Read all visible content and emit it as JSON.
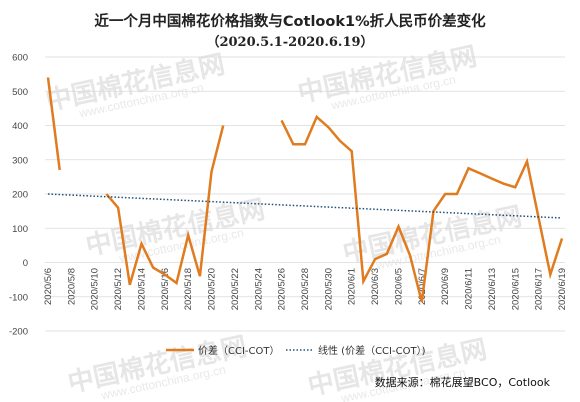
{
  "chart_data": {
    "type": "line",
    "title": "近一个月中国棉花价格指数与Cotlook1%折人民币价差变化",
    "subtitle": "（2020.5.1-2020.6.19）",
    "ylim": [
      -200,
      600
    ],
    "yticks": [
      600,
      500,
      400,
      300,
      200,
      100,
      0,
      -100,
      -200
    ],
    "grid": "horizontal",
    "x": [
      "2020/5/6",
      "2020/5/7",
      "2020/5/8",
      "2020/5/9",
      "2020/5/10",
      "2020/5/11",
      "2020/5/12",
      "2020/5/13",
      "2020/5/14",
      "2020/5/15",
      "2020/5/16",
      "2020/5/17",
      "2020/5/18",
      "2020/5/19",
      "2020/5/20",
      "2020/5/21",
      "2020/5/22",
      "2020/5/23",
      "2020/5/24",
      "2020/5/25",
      "2020/5/26",
      "2020/5/27",
      "2020/5/28",
      "2020/5/29",
      "2020/5/30",
      "2020/5/31",
      "2020/6/1",
      "2020/6/2",
      "2020/6/3",
      "2020/6/4",
      "2020/6/5",
      "2020/6/6",
      "2020/6/7",
      "2020/6/8",
      "2020/6/9",
      "2020/6/10",
      "2020/6/11",
      "2020/6/12",
      "2020/6/13",
      "2020/6/14",
      "2020/6/15",
      "2020/6/16",
      "2020/6/17",
      "2020/6/18",
      "2020/6/19"
    ],
    "x_tick_labels": [
      "2020/5/6",
      "2020/5/8",
      "2020/5/10",
      "2020/5/12",
      "2020/5/14",
      "2020/5/16",
      "2020/5/18",
      "2020/5/20",
      "2020/5/22",
      "2020/5/24",
      "2020/5/26",
      "2020/5/28",
      "2020/5/30",
      "2020/6/1",
      "2020/6/3",
      "2020/6/5",
      "2020/6/7",
      "2020/6/9",
      "2020/6/11",
      "2020/6/13",
      "2020/6/15",
      "2020/6/17",
      "2020/6/19"
    ],
    "series": [
      {
        "name": "价差（CCI-COT）",
        "color": "#e07b1f",
        "style": "solid",
        "values": [
          540,
          270,
          null,
          null,
          null,
          200,
          160,
          -65,
          55,
          -15,
          -35,
          -60,
          80,
          -40,
          265,
          400,
          null,
          null,
          null,
          null,
          415,
          345,
          345,
          425,
          395,
          355,
          325,
          -55,
          10,
          25,
          105,
          20,
          -115,
          150,
          200,
          200,
          275,
          260,
          245,
          230,
          220,
          295,
          130,
          -35,
          70
        ]
      },
      {
        "name": "线性 (价差（CCI-COT）)",
        "color": "#1f4e79",
        "style": "dotted",
        "trend_start": 200,
        "trend_end": 130
      }
    ],
    "legend_position": "bottom"
  },
  "source_label": "数据来源：棉花展望BCO，Cotlook",
  "watermark": {
    "cn": "中国棉花信息网",
    "en": "www.cottonchina.org.cn"
  }
}
